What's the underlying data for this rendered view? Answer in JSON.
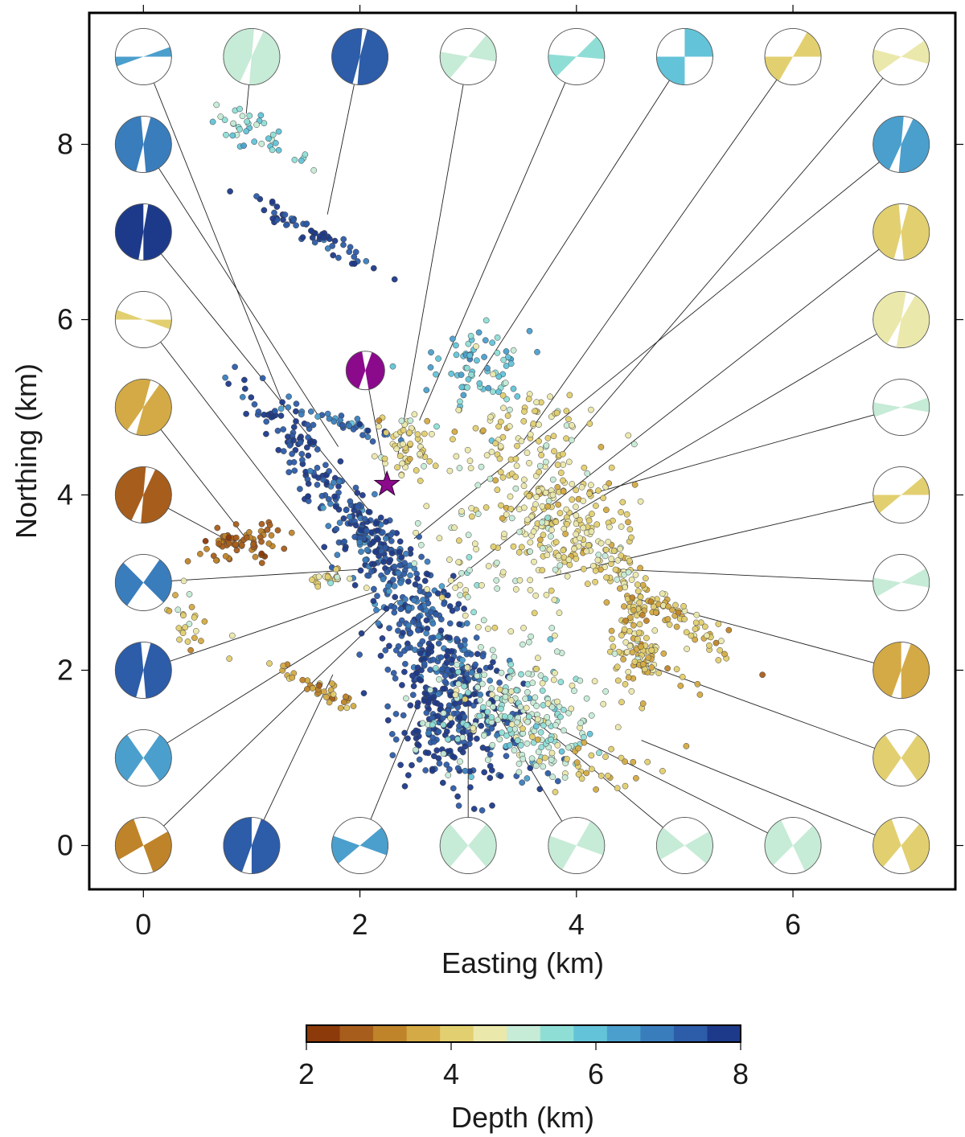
{
  "chart_data": {
    "type": "scatter",
    "title": "",
    "xlabel": "Easting (km)",
    "ylabel": "Northing (km)",
    "xlim": [
      -0.5,
      7.5
    ],
    "ylim": [
      -0.5,
      9.5
    ],
    "xticks": [
      0,
      2,
      4,
      6
    ],
    "yticks": [
      0,
      2,
      4,
      6,
      8
    ],
    "grid": false,
    "mainshock": {
      "x": 2.25,
      "y": 4.12,
      "color": "#8b0a8b",
      "marker": "star"
    },
    "mainshock_mechanism": {
      "x": 2.05,
      "y": 5.42,
      "color": "#8b0a8b",
      "strike": 20,
      "slip_angle": 150
    },
    "colorbar": {
      "label": "Depth (km)",
      "min": 2,
      "max": 8,
      "ticks": [
        2,
        4,
        6,
        8
      ],
      "colors": [
        "#8c3a0a",
        "#a75e1c",
        "#bf842a",
        "#d3aa45",
        "#e2cf70",
        "#ebe8ac",
        "#c6ebd6",
        "#8fded6",
        "#63c3d8",
        "#4b9fcc",
        "#3a7dbc",
        "#2d5ca8",
        "#1d3a8a"
      ]
    },
    "clusters": [
      {
        "x": 0.99,
        "y": 8.15,
        "depth": 5.6,
        "n": 40,
        "sx": 0.1,
        "sy": 0.28,
        "rot": 55
      },
      {
        "x": 1.6,
        "y": 6.95,
        "depth": 7.5,
        "n": 60,
        "sx": 0.06,
        "sy": 0.38,
        "rot": 55
      },
      {
        "x": 1.9,
        "y": 4.8,
        "depth": 7.0,
        "n": 40,
        "sx": 0.3,
        "sy": 0.05,
        "rot": -20
      },
      {
        "x": 1.45,
        "y": 4.6,
        "depth": 7.6,
        "n": 80,
        "sx": 0.1,
        "sy": 0.45,
        "rot": 40
      },
      {
        "x": 2.4,
        "y": 4.55,
        "depth": 4.3,
        "n": 60,
        "sx": 0.14,
        "sy": 0.2,
        "rot": 20
      },
      {
        "x": 3.05,
        "y": 5.5,
        "depth": 6.0,
        "n": 70,
        "sx": 0.25,
        "sy": 0.22,
        "rot": 20
      },
      {
        "x": 2.05,
        "y": 3.6,
        "depth": 7.4,
        "n": 150,
        "sx": 0.12,
        "sy": 0.55,
        "rot": 40
      },
      {
        "x": 2.65,
        "y": 2.4,
        "depth": 7.3,
        "n": 350,
        "sx": 0.18,
        "sy": 0.85,
        "rot": 30
      },
      {
        "x": 2.75,
        "y": 1.4,
        "depth": 7.6,
        "n": 200,
        "sx": 0.2,
        "sy": 0.4,
        "rot": 15
      },
      {
        "x": 3.5,
        "y": 1.5,
        "depth": 5.1,
        "n": 250,
        "sx": 0.4,
        "sy": 0.35,
        "rot": -30
      },
      {
        "x": 3.9,
        "y": 3.7,
        "depth": 4.2,
        "n": 200,
        "sx": 0.28,
        "sy": 0.35,
        "rot": 35
      },
      {
        "x": 3.5,
        "y": 4.7,
        "depth": 4.3,
        "n": 90,
        "sx": 0.35,
        "sy": 0.3,
        "rot": 30
      },
      {
        "x": 3.4,
        "y": 3.3,
        "depth": 4.7,
        "n": 100,
        "sx": 0.45,
        "sy": 0.45,
        "rot": 20
      },
      {
        "x": 4.55,
        "y": 2.2,
        "depth": 4.0,
        "n": 80,
        "sx": 0.12,
        "sy": 0.15,
        "rot": 0
      },
      {
        "x": 4.95,
        "y": 2.6,
        "depth": 3.9,
        "n": 70,
        "sx": 0.08,
        "sy": 0.32,
        "rot": 50
      },
      {
        "x": 4.55,
        "y": 2.7,
        "depth": 3.9,
        "n": 30,
        "sx": 0.08,
        "sy": 0.1,
        "rot": 0
      },
      {
        "x": 4.4,
        "y": 3.1,
        "depth": 4.3,
        "n": 30,
        "sx": 0.15,
        "sy": 0.1,
        "rot": 0
      },
      {
        "x": 4.15,
        "y": 0.85,
        "depth": 3.9,
        "n": 30,
        "sx": 0.25,
        "sy": 0.18,
        "rot": 0
      },
      {
        "x": 0.93,
        "y": 3.45,
        "depth": 2.8,
        "n": 70,
        "sx": 0.2,
        "sy": 0.1,
        "rot": 10
      },
      {
        "x": 1.75,
        "y": 3.07,
        "depth": 4.2,
        "n": 20,
        "sx": 0.12,
        "sy": 0.04,
        "rot": 20
      },
      {
        "x": 0.4,
        "y": 2.55,
        "depth": 4.2,
        "n": 30,
        "sx": 0.09,
        "sy": 0.2,
        "rot": 30
      },
      {
        "x": 1.6,
        "y": 1.8,
        "depth": 3.5,
        "n": 40,
        "sx": 0.05,
        "sy": 0.22,
        "rot": 60
      },
      {
        "x": 4.85,
        "y": 1.8,
        "depth": 3.7,
        "n": 15,
        "sx": 0.5,
        "sy": 0.3,
        "rot": 0
      }
    ],
    "mechanisms": [
      {
        "x": 0,
        "y": 9.0,
        "depth": 6.4,
        "strike": 70,
        "slip_angle": 20,
        "tx": 1.3,
        "ty": 5.0
      },
      {
        "x": 1,
        "y": 9.0,
        "depth": 5.1,
        "strike": 25,
        "slip_angle": 160,
        "tx": 0.95,
        "ty": 8.35
      },
      {
        "x": 2,
        "y": 9.0,
        "depth": 7.2,
        "strike": 15,
        "slip_angle": 170,
        "tx": 1.7,
        "ty": 7.2
      },
      {
        "x": 3,
        "y": 9.0,
        "depth": 5.2,
        "strike": 40,
        "slip_angle": 60,
        "tx": 2.35,
        "ty": 4.45
      },
      {
        "x": 4,
        "y": 9.0,
        "depth": 5.3,
        "strike": 45,
        "slip_angle": 50,
        "tx": 2.55,
        "ty": 4.85
      },
      {
        "x": 5,
        "y": 9.0,
        "depth": 5.8,
        "strike": 0,
        "slip_angle": 90,
        "tx": 3.1,
        "ty": 5.35
      },
      {
        "x": 6,
        "y": 9.0,
        "depth": 4.3,
        "strike": 30,
        "slip_angle": 60,
        "tx": 3.5,
        "ty": 4.6
      },
      {
        "x": 7,
        "y": 9.0,
        "depth": 4.7,
        "strike": 55,
        "slip_angle": 50,
        "tx": 3.4,
        "ty": 3.8
      },
      {
        "x": 0,
        "y": 8.0,
        "depth": 6.8,
        "strike": 15,
        "slip_angle": 160,
        "tx": 1.8,
        "ty": 4.55
      },
      {
        "x": 7,
        "y": 8.0,
        "depth": 6.5,
        "strike": 25,
        "slip_angle": 160,
        "tx": 2.5,
        "ty": 3.5
      },
      {
        "x": 0,
        "y": 7.0,
        "depth": 7.8,
        "strike": 10,
        "slip_angle": 170,
        "tx": 2.1,
        "ty": 3.8
      },
      {
        "x": 7,
        "y": 7.0,
        "depth": 4.1,
        "strike": 15,
        "slip_angle": 160,
        "tx": 2.8,
        "ty": 2.95
      },
      {
        "x": 0,
        "y": 6.0,
        "depth": 4.2,
        "strike": 90,
        "slip_angle": 20,
        "tx": 1.8,
        "ty": 3.1
      },
      {
        "x": 7,
        "y": 6.0,
        "depth": 4.6,
        "strike": 30,
        "slip_angle": 160,
        "tx": 3.85,
        "ty": 3.7
      },
      {
        "x": 0,
        "y": 5.0,
        "depth": 3.5,
        "strike": 35,
        "slip_angle": 160,
        "tx": 0.95,
        "ty": 3.5
      },
      {
        "x": 7,
        "y": 5.0,
        "depth": 4.8,
        "strike": 70,
        "slip_angle": 30,
        "tx": 4.1,
        "ty": 4.0
      },
      {
        "x": 0,
        "y": 4.0,
        "depth": 2.6,
        "strike": 25,
        "slip_angle": 160,
        "tx": 0.9,
        "ty": 3.4
      },
      {
        "x": 7,
        "y": 4.0,
        "depth": 4.2,
        "strike": 50,
        "slip_angle": 40,
        "tx": 3.7,
        "ty": 3.05
      },
      {
        "x": 0,
        "y": 3.0,
        "depth": 7.0,
        "strike": 35,
        "slip_angle": 100,
        "tx": 2.0,
        "ty": 3.15
      },
      {
        "x": 7,
        "y": 3.0,
        "depth": 4.8,
        "strike": 60,
        "slip_angle": 40,
        "tx": 4.4,
        "ty": 3.15
      },
      {
        "x": 0,
        "y": 2.0,
        "depth": 7.1,
        "strike": 15,
        "slip_angle": 160,
        "tx": 2.15,
        "ty": 2.9
      },
      {
        "x": 7,
        "y": 2.0,
        "depth": 3.8,
        "strike": 20,
        "slip_angle": 160,
        "tx": 4.6,
        "ty": 2.8
      },
      {
        "x": 0,
        "y": 1.0,
        "depth": 6.5,
        "strike": 35,
        "slip_angle": 110,
        "tx": 2.2,
        "ty": 2.7
      },
      {
        "x": 7,
        "y": 1.0,
        "depth": 4.2,
        "strike": 35,
        "slip_angle": 110,
        "tx": 4.55,
        "ty": 2.1
      },
      {
        "x": 0,
        "y": 0.0,
        "depth": 3.2,
        "strike": 60,
        "slip_angle": 100,
        "tx": 2.35,
        "ty": 2.8
      },
      {
        "x": 1,
        "y": 0.0,
        "depth": 7.2,
        "strike": 20,
        "slip_angle": 160,
        "tx": 1.75,
        "ty": 1.95
      },
      {
        "x": 2,
        "y": 0.0,
        "depth": 6.4,
        "strike": 50,
        "slip_angle": 60,
        "tx": 2.55,
        "ty": 1.65
      },
      {
        "x": 3,
        "y": 0.0,
        "depth": 5.2,
        "strike": 40,
        "slip_angle": 100,
        "tx": 3.0,
        "ty": 2.0
      },
      {
        "x": 4,
        "y": 0.0,
        "depth": 5.2,
        "strike": 30,
        "slip_angle": 80,
        "tx": 3.2,
        "ty": 1.65
      },
      {
        "x": 5,
        "y": 0.0,
        "depth": 5.2,
        "strike": 60,
        "slip_angle": 70,
        "tx": 3.3,
        "ty": 1.75
      },
      {
        "x": 6,
        "y": 0.0,
        "depth": 5.1,
        "strike": 45,
        "slip_angle": 110,
        "tx": 3.4,
        "ty": 1.6
      },
      {
        "x": 7,
        "y": 0.0,
        "depth": 4.3,
        "strike": 40,
        "slip_angle": 120,
        "tx": 4.6,
        "ty": 1.2
      }
    ]
  }
}
